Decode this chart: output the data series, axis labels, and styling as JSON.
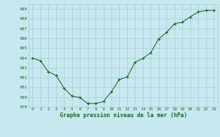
{
  "x": [
    0,
    1,
    2,
    3,
    4,
    5,
    6,
    7,
    8,
    9,
    10,
    11,
    12,
    13,
    14,
    15,
    16,
    17,
    18,
    19,
    20,
    21,
    22,
    23
  ],
  "y": [
    984.0,
    983.7,
    982.6,
    982.2,
    980.9,
    980.1,
    979.95,
    979.35,
    979.35,
    979.55,
    980.55,
    981.8,
    982.05,
    983.55,
    983.95,
    984.55,
    985.95,
    986.6,
    987.5,
    987.65,
    988.2,
    988.7,
    988.85,
    988.85
  ],
  "line_color": "#1a6b1a",
  "marker": "+",
  "marker_color": "#1a6b1a",
  "bg_color": "#c8e8f0",
  "grid_color": "#a8c8d8",
  "xlabel": "Graphe pression niveau de la mer (hPa)",
  "xlabel_color": "#1a6b1a",
  "tick_color": "#1a6b1a",
  "ylim": [
    979,
    989.5
  ],
  "yticks": [
    979,
    980,
    981,
    982,
    983,
    984,
    985,
    986,
    987,
    988,
    989
  ],
  "xticks": [
    0,
    1,
    2,
    3,
    4,
    5,
    6,
    7,
    8,
    9,
    10,
    11,
    12,
    13,
    14,
    15,
    16,
    17,
    18,
    19,
    20,
    21,
    22,
    23
  ]
}
